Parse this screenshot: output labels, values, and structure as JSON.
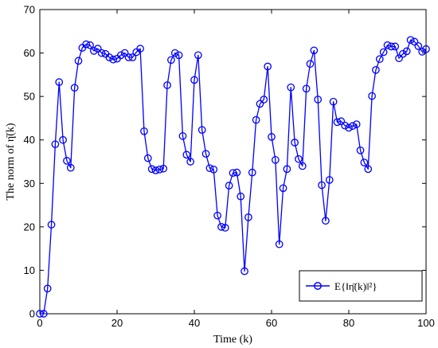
{
  "chart_data": {
    "type": "line",
    "xlabel": "Time (k)",
    "ylabel": "The norm of η̄(k)",
    "xlim": [
      0,
      100
    ],
    "ylim": [
      0,
      70
    ],
    "xticks": [
      0,
      20,
      40,
      60,
      80,
      100
    ],
    "yticks": [
      0,
      10,
      20,
      30,
      40,
      50,
      60,
      70
    ],
    "grid": false,
    "legend_position": "bottom-right",
    "colors": {
      "series": "#0000ff",
      "axes": "#000000"
    },
    "series": [
      {
        "name": "E{‖η̄(k)‖²}",
        "marker": "circle",
        "x": [
          0,
          1,
          2,
          3,
          4,
          5,
          6,
          7,
          8,
          9,
          10,
          11,
          12,
          13,
          14,
          15,
          16,
          17,
          18,
          19,
          20,
          21,
          22,
          23,
          24,
          25,
          26,
          27,
          28,
          29,
          30,
          31,
          32,
          33,
          34,
          35,
          36,
          37,
          38,
          39,
          40,
          41,
          42,
          43,
          44,
          45,
          46,
          47,
          48,
          49,
          50,
          51,
          52,
          53,
          54,
          55,
          56,
          57,
          58,
          59,
          60,
          61,
          62,
          63,
          64,
          65,
          66,
          67,
          68,
          69,
          70,
          71,
          72,
          73,
          74,
          75,
          76,
          77,
          78,
          79,
          80,
          81,
          82,
          83,
          84,
          85,
          86,
          87,
          88,
          89,
          90,
          91,
          92,
          93,
          94,
          95,
          96,
          97,
          98,
          99,
          100
        ],
        "y": [
          0,
          0,
          5.8,
          20.5,
          39,
          53.3,
          40,
          35.2,
          33.6,
          52,
          58.2,
          61.2,
          62,
          61.8,
          60.5,
          61,
          60,
          59.8,
          59,
          58.5,
          58.7,
          59.5,
          60,
          59,
          59,
          60.2,
          61,
          42,
          35.8,
          33.3,
          33,
          33.2,
          33.4,
          52.6,
          58.4,
          60,
          59.5,
          40.9,
          36.6,
          35,
          53.8,
          59.5,
          42.3,
          36.8,
          33.5,
          33.2,
          22.6,
          20,
          19.8,
          29.5,
          32.4,
          32.5,
          27,
          9.8,
          22.2,
          32.5,
          44.6,
          48.3,
          49.3,
          56.9,
          40.7,
          35.4,
          16,
          28.9,
          33.3,
          52.1,
          39.4,
          35.6,
          34,
          51.8,
          57.5,
          60.6,
          49.3,
          29.6,
          21.4,
          30.8,
          48.8,
          44.1,
          44.3,
          43.3,
          42.8,
          43.2,
          43.6,
          37.6,
          34.8,
          33.3,
          50.1,
          56.1,
          58.6,
          60.2,
          61.8,
          61.5,
          61.5,
          58.8,
          59.8,
          60.4,
          63,
          62.6,
          61.6,
          60.3,
          60.9
        ]
      }
    ]
  }
}
